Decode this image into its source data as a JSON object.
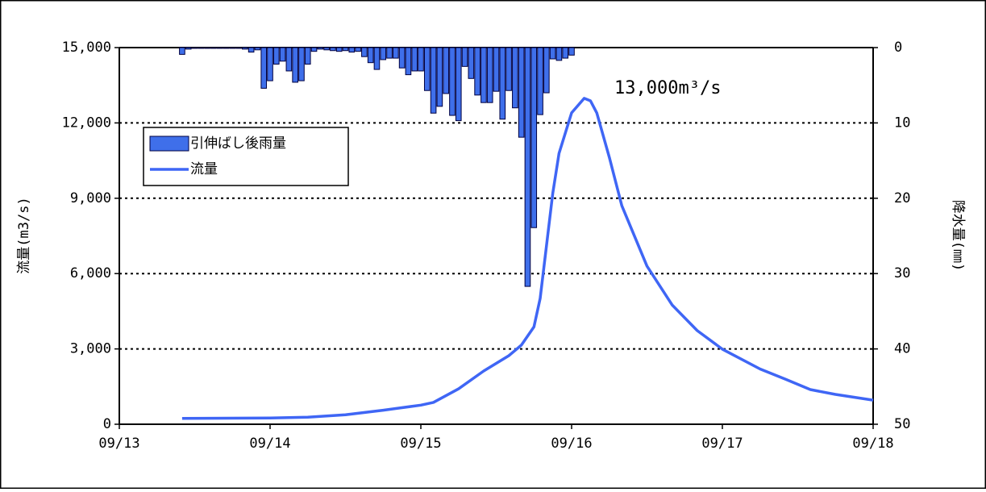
{
  "chart_data": {
    "type": "combo",
    "annotation": "13,000m³/s",
    "y_label": "流量(m3/s)",
    "y2_label": "降水量(㎜)",
    "xlim": [
      0,
      120
    ],
    "xticks": [
      {
        "value": 0,
        "label": "09/13"
      },
      {
        "value": 24,
        "label": "09/14"
      },
      {
        "value": 48,
        "label": "09/15"
      },
      {
        "value": 72,
        "label": "09/16"
      },
      {
        "value": 96,
        "label": "09/17"
      },
      {
        "value": 120,
        "label": "09/18"
      }
    ],
    "ylim": [
      0,
      15000
    ],
    "yticks": [
      {
        "value": 0,
        "label": "0"
      },
      {
        "value": 3000,
        "label": "3,000"
      },
      {
        "value": 6000,
        "label": "6,000"
      },
      {
        "value": 9000,
        "label": "9,000"
      },
      {
        "value": 12000,
        "label": "12,000"
      },
      {
        "value": 15000,
        "label": "15,000"
      }
    ],
    "y2lim": [
      0,
      50
    ],
    "y2ticks": [
      0,
      10,
      20,
      30,
      40,
      50
    ],
    "y2_inverted": true,
    "grid": true,
    "legend": "upper-left",
    "series": [
      {
        "name": "引伸ばし後雨量",
        "type": "bar",
        "axis": "y2",
        "color": "#3f6fea",
        "x": [
          10,
          11,
          12,
          13,
          14,
          15,
          16,
          17,
          18,
          19,
          20,
          21,
          22,
          23,
          24,
          25,
          26,
          27,
          28,
          29,
          30,
          31,
          32,
          33,
          34,
          35,
          36,
          37,
          38,
          39,
          40,
          41,
          42,
          43,
          44,
          45,
          46,
          47,
          48,
          49,
          50,
          51,
          52,
          53,
          54,
          55,
          56,
          57,
          58,
          59,
          60,
          61,
          62,
          63,
          64,
          65,
          66,
          67,
          68,
          69,
          70,
          71,
          72
        ],
        "values": [
          0.9,
          0.2,
          0.1,
          0.1,
          0.1,
          0.1,
          0.1,
          0.1,
          0.1,
          0.1,
          0.2,
          0.6,
          0.3,
          5.4,
          4.4,
          2.2,
          1.8,
          3.1,
          4.6,
          4.4,
          2.2,
          0.5,
          0.2,
          0.3,
          0.4,
          0.5,
          0.4,
          0.6,
          0.5,
          1.2,
          2.0,
          2.9,
          1.6,
          1.4,
          1.4,
          2.7,
          3.6,
          3.1,
          3.1,
          5.7,
          8.7,
          7.8,
          6.1,
          9.0,
          9.7,
          2.5,
          4.1,
          6.3,
          7.3,
          7.3,
          5.8,
          9.5,
          5.7,
          8.0,
          11.9,
          31.7,
          23.9,
          8.9,
          6.0,
          1.5,
          1.7,
          1.4,
          1.0
        ]
      },
      {
        "name": "流量",
        "type": "line",
        "color": "#3f66f5",
        "x": [
          10,
          24,
          30,
          36,
          42,
          48,
          50,
          54,
          58,
          62,
          64,
          66,
          67,
          68,
          69,
          70,
          72,
          74,
          75,
          76,
          78,
          80,
          84,
          88,
          92,
          96,
          102,
          106,
          110,
          114,
          120
        ],
        "values": [
          230,
          250,
          280,
          380,
          560,
          760,
          870,
          1410,
          2120,
          2730,
          3150,
          3880,
          5010,
          7100,
          9190,
          10790,
          12400,
          12980,
          12880,
          12400,
          10630,
          8700,
          6300,
          4750,
          3730,
          2990,
          2200,
          1800,
          1380,
          1190,
          960
        ]
      }
    ]
  }
}
